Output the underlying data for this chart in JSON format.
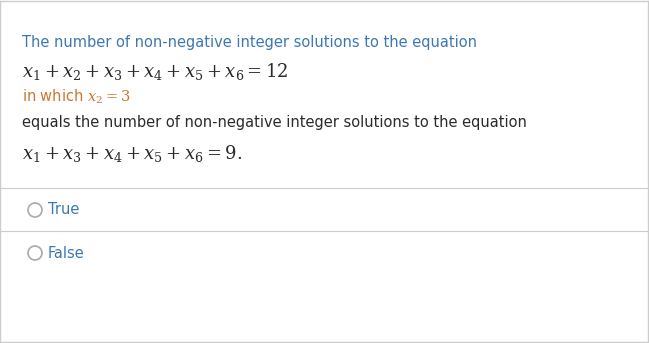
{
  "bg_color": "#ffffff",
  "border_color": "#cccccc",
  "blue_color": "#3c78b4",
  "orange_color": "#c87830",
  "black_color": "#2b2b2b",
  "gray_color": "#aaaaaa",
  "line1_text": "The number of non-negative integer solutions to the equation",
  "line2_math": "$x_1 + x_2 + x_3 + x_4 + x_5 + x_6 = 12$",
  "line3_orange": "in which $x_2 = 3$",
  "line4_text": "equals the number of non-negative integer solutions to the equation",
  "line5_math": "$x_1 + x_3 + x_4 + x_5 + x_6 = 9.$",
  "option1": "True",
  "option2": "False",
  "figsize": [
    6.49,
    3.43
  ],
  "dpi": 100
}
